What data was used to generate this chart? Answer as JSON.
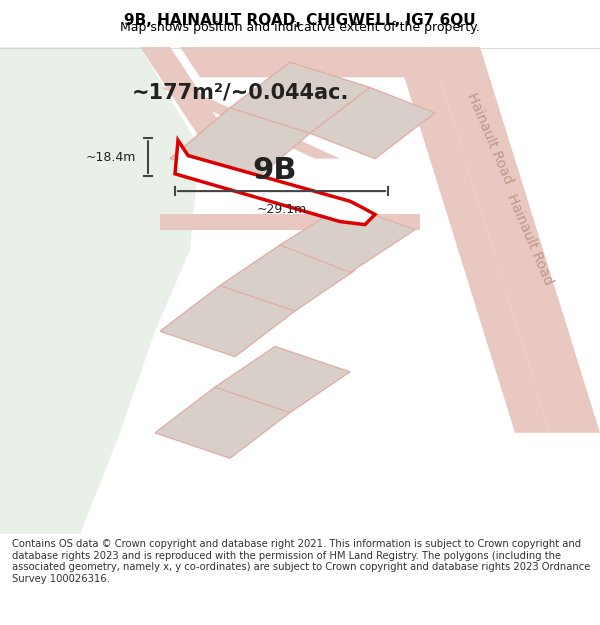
{
  "title": "9B, HAINAULT ROAD, CHIGWELL, IG7 6QU",
  "subtitle": "Map shows position and indicative extent of the property.",
  "footer": "Contains OS data © Crown copyright and database right 2021. This information is subject to Crown copyright and database rights 2023 and is reproduced with the permission of HM Land Registry. The polygons (including the associated geometry, namely x, y co-ordinates) are subject to Crown copyright and database rights 2023 Ordnance Survey 100026316.",
  "area_label": "~177m²/~0.044ac.",
  "plot_label": "9B",
  "dim_width": "~29.1m",
  "dim_height": "~18.4m",
  "road_label": "Hainault Road",
  "bg_map_color": "#f5f5f0",
  "bg_green_color": "#e8f0e8",
  "road_color": "#e8d8d0",
  "building_color": "#d8d0c8",
  "plot_fill": "#ffffff",
  "plot_edge_color": "#dd0000",
  "title_color": "#000000",
  "footer_color": "#333333",
  "footer_bg": "#ffffff",
  "dim_color": "#444444",
  "area_label_size": 18,
  "plot_label_size": 28,
  "road_label_size": 11
}
